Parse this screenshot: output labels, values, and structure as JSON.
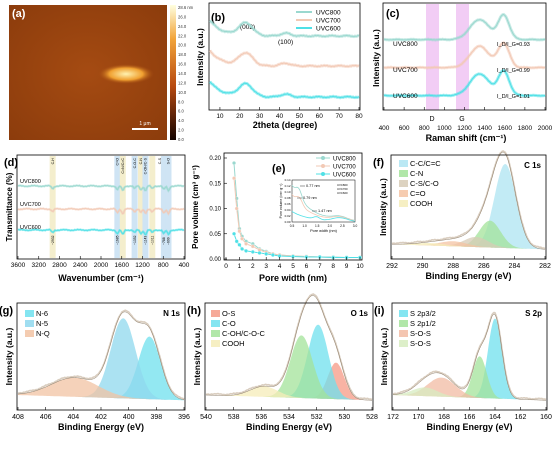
{
  "colors": {
    "uvc800": "#9ad8cf",
    "uvc700": "#f2c9b5",
    "uvc600": "#4fe0e6",
    "d_band": "#eebcf2",
    "g_band": "#eebcf2"
  },
  "panel_a": {
    "label": "(a)",
    "scale_bar": "1 μm",
    "colorbar_ticks": [
      "28.6 nm",
      "26.0",
      "24.0",
      "22.0",
      "20.0",
      "18.0",
      "16.0",
      "14.0",
      "12.0",
      "10.0",
      "8.0",
      "6.0",
      "4.0",
      "2.0",
      "0.0"
    ]
  },
  "panel_b": {
    "label": "(b)",
    "legend": [
      "UVC800",
      "UVC700",
      "UVC600"
    ],
    "peaks": [
      "(002)",
      "(100)"
    ],
    "xlabel": "2theta (degree)",
    "ylabel": "Intensity (a.u.)",
    "xticks": [
      "10",
      "20",
      "30",
      "40",
      "50",
      "60",
      "70",
      "80"
    ]
  },
  "panel_c": {
    "label": "(c)",
    "series_labels": [
      "UVC800",
      "UVC700",
      "UVC600"
    ],
    "ratios": [
      "I_D/I_G=0.93",
      "I_D/I_G=0.99",
      "I_D/I_G=1.01"
    ],
    "band_labels": [
      "D",
      "G"
    ],
    "xlabel": "Raman shift (cm⁻¹)",
    "ylabel": "Intensity (a.u.)",
    "xticks": [
      "400",
      "600",
      "800",
      "1000",
      "1200",
      "1400",
      "1600",
      "1800",
      "2000"
    ]
  },
  "panel_d": {
    "label": "(d)",
    "series_labels": [
      "UVC800",
      "UVC700",
      "UVC600"
    ],
    "top_labels": [
      "C-H",
      "C=O",
      "C=N/C=C",
      "C-O-C",
      "C-N",
      "C-OH/C-S",
      "C-S",
      "S-O"
    ],
    "bottom_labels": [
      "~2932",
      "~1685",
      "~1352",
      "~1143",
      "~1011",
      "~788",
      "~699"
    ],
    "xlabel": "Wavenumber (cm⁻¹)",
    "ylabel": "Transmittance (%)",
    "xticks": [
      "3600",
      "3200",
      "2800",
      "2400",
      "2000",
      "1600",
      "1200",
      "800",
      "400"
    ]
  },
  "panel_e": {
    "label": "(e)",
    "legend": [
      "UVC800",
      "UVC700",
      "UVC600"
    ],
    "xlabel": "Pore width (nm)",
    "ylabel": "Pore volume (cm³ g⁻¹)",
    "xticks": [
      "0",
      "1",
      "2",
      "3",
      "4",
      "5",
      "6",
      "7",
      "8",
      "9",
      "10"
    ],
    "yticks": [
      "0.00",
      "0.05",
      "0.10",
      "0.15",
      "0.20"
    ],
    "inset": {
      "annotations": [
        "0.77 nm",
        "0.79 nm",
        "1.47 nm"
      ],
      "xlabel": "Pore width (nm)",
      "ylabel": "Pore volume (cm³ g⁻¹)",
      "xticks": [
        "0.5",
        "1.0",
        "1.5",
        "2.0",
        "2.5",
        "3.0"
      ],
      "yticks": [
        "0.00",
        "0.02",
        "0.04",
        "0.06",
        "0.08",
        "0.10",
        "0.12",
        "0.14"
      ]
    }
  },
  "panel_f": {
    "label": "(f)",
    "title": "C 1s",
    "legend": [
      "C-C/C=C",
      "C-N",
      "C-S/C-O",
      "C=O",
      "COOH"
    ],
    "xlabel": "Binding Energy (eV)",
    "ylabel": "Intensity (a.u.)",
    "xticks": [
      "292",
      "290",
      "288",
      "286",
      "284",
      "282"
    ]
  },
  "panel_g": {
    "label": "(g)",
    "title": "N 1s",
    "legend": [
      "N-6",
      "N-5",
      "N-Q"
    ],
    "xlabel": "Binding Energy (eV)",
    "ylabel": "Intensity (a.u.)",
    "xticks": [
      "408",
      "406",
      "404",
      "402",
      "400",
      "398",
      "396"
    ]
  },
  "panel_h": {
    "label": "(h)",
    "title": "O 1s",
    "legend": [
      "O-S",
      "C-O",
      "C-OH/C-O-C",
      "COOH"
    ],
    "xlabel": "Binding Energy (eV)",
    "ylabel": "Intensity (a.u.)",
    "xticks": [
      "540",
      "538",
      "536",
      "534",
      "532",
      "530",
      "528"
    ]
  },
  "panel_i": {
    "label": "(i)",
    "title": "S 2p",
    "legend": [
      "S 2p3/2",
      "S 2p1/2",
      "S-O-S",
      "S-O-S"
    ],
    "xlabel": "Binding Energy (eV)",
    "ylabel": "Intensity (a.u.)",
    "xticks": [
      "172",
      "170",
      "168",
      "166",
      "164",
      "162",
      "160"
    ]
  },
  "chart_data": [
    {
      "type": "line",
      "id": "b",
      "xlim": [
        5,
        80
      ],
      "series": [
        {
          "name": "UVC800",
          "peaks": [
            {
              "x": 23,
              "rel": 0.45
            },
            {
              "x": 43,
              "rel": 0.1
            }
          ]
        },
        {
          "name": "UVC700",
          "peaks": [
            {
              "x": 23,
              "rel": 0.45
            },
            {
              "x": 43,
              "rel": 0.1
            }
          ]
        },
        {
          "name": "UVC600",
          "peaks": [
            {
              "x": 23,
              "rel": 0.45
            },
            {
              "x": 43,
              "rel": 0.1
            }
          ]
        }
      ]
    },
    {
      "type": "line",
      "id": "c",
      "xlim": [
        400,
        2000
      ],
      "bands": {
        "D": 1350,
        "G": 1590
      },
      "series": [
        {
          "name": "UVC800",
          "ratio": 0.93
        },
        {
          "name": "UVC700",
          "ratio": 0.99
        },
        {
          "name": "UVC600",
          "ratio": 1.01
        }
      ]
    },
    {
      "type": "line",
      "id": "d",
      "xlim": [
        3600,
        400
      ],
      "series": [
        {
          "name": "UVC800"
        },
        {
          "name": "UVC700"
        },
        {
          "name": "UVC600"
        }
      ],
      "bands": [
        2932,
        1685,
        1580,
        1352,
        1230,
        1143,
        1011,
        788,
        699
      ]
    },
    {
      "type": "scatter",
      "id": "e",
      "xlim": [
        0,
        10
      ],
      "ylim": [
        0,
        0.2
      ],
      "series": [
        {
          "name": "UVC800",
          "x": [
            0.6,
            0.8,
            1.0,
            1.2,
            1.5,
            2,
            2.5,
            3,
            3.5,
            4,
            5,
            6,
            7,
            8,
            9,
            10
          ],
          "y": [
            0.19,
            0.12,
            0.06,
            0.045,
            0.035,
            0.03,
            0.02,
            0.015,
            0.01,
            0.008,
            0.006,
            0.005,
            0.004,
            0.004,
            0.003,
            0.003
          ]
        },
        {
          "name": "UVC700",
          "x": [
            0.6,
            0.8,
            1.0,
            1.2,
            1.5,
            2,
            2.5,
            3,
            3.5,
            4,
            5,
            6,
            7,
            8,
            9,
            10
          ],
          "y": [
            0.16,
            0.1,
            0.055,
            0.04,
            0.03,
            0.025,
            0.018,
            0.013,
            0.01,
            0.008,
            0.006,
            0.005,
            0.004,
            0.003,
            0.003,
            0.003
          ]
        },
        {
          "name": "UVC600",
          "x": [
            0.6,
            0.8,
            1.0,
            1.2,
            1.5,
            2,
            2.5,
            3,
            3.5,
            4,
            5,
            6,
            7,
            8,
            9,
            10
          ],
          "y": [
            0.05,
            0.035,
            0.028,
            0.02,
            0.016,
            0.014,
            0.012,
            0.01,
            0.008,
            0.006,
            0.005,
            0.004,
            0.004,
            0.003,
            0.003,
            0.003
          ]
        }
      ]
    },
    {
      "type": "area",
      "id": "f",
      "xlim": [
        292,
        282
      ],
      "components": [
        {
          "name": "C-C/C=C",
          "center": 284.6,
          "height": 1.0,
          "width": 0.7
        },
        {
          "name": "C-N",
          "center": 285.6,
          "height": 0.32,
          "width": 0.7
        },
        {
          "name": "C-S/C-O",
          "center": 286.5,
          "height": 0.12,
          "width": 0.8
        },
        {
          "name": "C=O",
          "center": 288.0,
          "height": 0.06,
          "width": 0.9
        },
        {
          "name": "COOH",
          "center": 289.5,
          "height": 0.03,
          "width": 1.0
        }
      ]
    },
    {
      "type": "area",
      "id": "g",
      "xlim": [
        408,
        396
      ],
      "components": [
        {
          "name": "N-6",
          "center": 398.5,
          "height": 0.72,
          "width": 0.8
        },
        {
          "name": "N-5",
          "center": 400.4,
          "height": 0.92,
          "width": 0.9
        },
        {
          "name": "N-Q",
          "center": 403.9,
          "height": 0.22,
          "width": 1.7
        }
      ]
    },
    {
      "type": "area",
      "id": "h",
      "xlim": [
        540,
        528
      ],
      "components": [
        {
          "name": "O-S",
          "center": 530.6,
          "height": 0.42,
          "width": 0.6
        },
        {
          "name": "C-O",
          "center": 531.9,
          "height": 0.85,
          "width": 0.75
        },
        {
          "name": "C-OH/C-O-C",
          "center": 533.1,
          "height": 0.72,
          "width": 0.8
        },
        {
          "name": "COOH",
          "center": 535.8,
          "height": 0.12,
          "width": 1.0
        }
      ]
    },
    {
      "type": "area",
      "id": "i",
      "xlim": [
        172,
        160
      ],
      "components": [
        {
          "name": "S 2p3/2",
          "center": 164.0,
          "height": 0.92,
          "width": 0.55
        },
        {
          "name": "S 2p1/2",
          "center": 165.2,
          "height": 0.48,
          "width": 0.55
        },
        {
          "name": "S-O-S",
          "center": 168.2,
          "height": 0.22,
          "width": 1.1
        },
        {
          "name": "S-O-S",
          "center": 169.5,
          "height": 0.1,
          "width": 1.0
        }
      ]
    }
  ]
}
